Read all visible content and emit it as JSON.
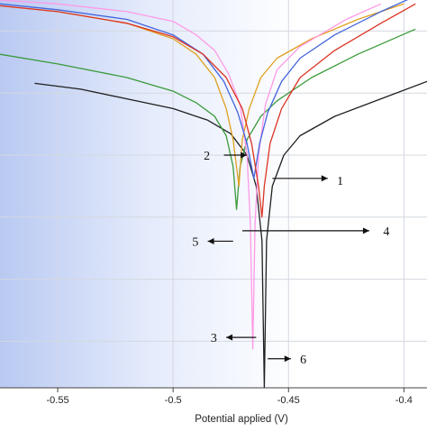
{
  "chart_data": {
    "type": "line",
    "xlabel": "Potential applied (V)",
    "ylabel": "",
    "title": "",
    "xlim": [
      -0.575,
      -0.39
    ],
    "ylim": [
      0,
      1
    ],
    "x_ticks": [
      -0.55,
      -0.5,
      -0.45,
      -0.4
    ],
    "x_tick_labels": [
      "-0.55",
      "-0.5",
      "-0.45",
      "-0.4"
    ],
    "y_tick_fractions": [
      0.12,
      0.28,
      0.44,
      0.6,
      0.76,
      0.92
    ],
    "grid": true,
    "background": "blue-gradient",
    "series": [
      {
        "color": "#1f1f1f",
        "points": [
          [
            -0.56,
            0.785
          ],
          [
            -0.54,
            0.77
          ],
          [
            -0.52,
            0.745
          ],
          [
            -0.5,
            0.72
          ],
          [
            -0.485,
            0.69
          ],
          [
            -0.475,
            0.655
          ],
          [
            -0.468,
            0.6
          ],
          [
            -0.464,
            0.52
          ],
          [
            -0.4615,
            0.38
          ],
          [
            -0.4605,
            0.0
          ],
          [
            -0.4595,
            0.38
          ],
          [
            -0.457,
            0.52
          ],
          [
            -0.452,
            0.6
          ],
          [
            -0.445,
            0.65
          ],
          [
            -0.43,
            0.7
          ],
          [
            -0.41,
            0.745
          ],
          [
            -0.39,
            0.79
          ]
        ]
      },
      {
        "color": "#3a9a3a",
        "points": [
          [
            -0.575,
            0.86
          ],
          [
            -0.55,
            0.835
          ],
          [
            -0.52,
            0.8
          ],
          [
            -0.5,
            0.765
          ],
          [
            -0.49,
            0.735
          ],
          [
            -0.482,
            0.7
          ],
          [
            -0.477,
            0.65
          ],
          [
            -0.474,
            0.57
          ],
          [
            -0.4725,
            0.46
          ],
          [
            -0.471,
            0.57
          ],
          [
            -0.468,
            0.64
          ],
          [
            -0.462,
            0.7
          ],
          [
            -0.455,
            0.74
          ],
          [
            -0.44,
            0.8
          ],
          [
            -0.42,
            0.86
          ],
          [
            -0.395,
            0.925
          ]
        ]
      },
      {
        "color": "#e0a020",
        "points": [
          [
            -0.575,
            0.985
          ],
          [
            -0.55,
            0.97
          ],
          [
            -0.52,
            0.94
          ],
          [
            -0.5,
            0.9
          ],
          [
            -0.49,
            0.86
          ],
          [
            -0.482,
            0.8
          ],
          [
            -0.477,
            0.72
          ],
          [
            -0.474,
            0.64
          ],
          [
            -0.4715,
            0.52
          ],
          [
            -0.47,
            0.64
          ],
          [
            -0.467,
            0.72
          ],
          [
            -0.462,
            0.8
          ],
          [
            -0.455,
            0.85
          ],
          [
            -0.44,
            0.9
          ],
          [
            -0.42,
            0.95
          ],
          [
            -0.4,
            0.99
          ]
        ]
      },
      {
        "color": "#ff99e6",
        "points": [
          [
            -0.575,
            1.0
          ],
          [
            -0.55,
            0.99
          ],
          [
            -0.52,
            0.97
          ],
          [
            -0.5,
            0.945
          ],
          [
            -0.49,
            0.91
          ],
          [
            -0.482,
            0.87
          ],
          [
            -0.476,
            0.81
          ],
          [
            -0.471,
            0.73
          ],
          [
            -0.468,
            0.6
          ],
          [
            -0.4665,
            0.42
          ],
          [
            -0.4655,
            0.1
          ],
          [
            -0.4645,
            0.42
          ],
          [
            -0.463,
            0.6
          ],
          [
            -0.46,
            0.73
          ],
          [
            -0.455,
            0.82
          ],
          [
            -0.445,
            0.88
          ],
          [
            -0.425,
            0.95
          ],
          [
            -0.41,
            0.99
          ]
        ]
      },
      {
        "color": "#4466dd",
        "points": [
          [
            -0.575,
            0.99
          ],
          [
            -0.55,
            0.975
          ],
          [
            -0.52,
            0.95
          ],
          [
            -0.5,
            0.91
          ],
          [
            -0.487,
            0.86
          ],
          [
            -0.478,
            0.79
          ],
          [
            -0.472,
            0.71
          ],
          [
            -0.468,
            0.63
          ],
          [
            -0.465,
            0.54
          ],
          [
            -0.4625,
            0.63
          ],
          [
            -0.459,
            0.71
          ],
          [
            -0.453,
            0.79
          ],
          [
            -0.445,
            0.85
          ],
          [
            -0.43,
            0.91
          ],
          [
            -0.41,
            0.97
          ],
          [
            -0.395,
            1.01
          ]
        ]
      },
      {
        "color": "#dd3322",
        "points": [
          [
            -0.575,
            0.985
          ],
          [
            -0.55,
            0.97
          ],
          [
            -0.52,
            0.94
          ],
          [
            -0.5,
            0.905
          ],
          [
            -0.487,
            0.86
          ],
          [
            -0.477,
            0.8
          ],
          [
            -0.47,
            0.72
          ],
          [
            -0.466,
            0.63
          ],
          [
            -0.463,
            0.52
          ],
          [
            -0.4615,
            0.44
          ],
          [
            -0.4605,
            0.52
          ],
          [
            -0.458,
            0.63
          ],
          [
            -0.453,
            0.72
          ],
          [
            -0.445,
            0.8
          ],
          [
            -0.43,
            0.87
          ],
          [
            -0.41,
            0.94
          ],
          [
            -0.395,
            0.99
          ]
        ]
      }
    ],
    "annotations": [
      {
        "label": "1",
        "arrow_from": [
          -0.457,
          0.54
        ],
        "arrow_to": [
          -0.433,
          0.54
        ],
        "text_at": [
          -0.429,
          0.535
        ],
        "text_anchor": "start"
      },
      {
        "label": "2",
        "arrow_from": [
          -0.478,
          0.6
        ],
        "arrow_to": [
          -0.468,
          0.6
        ],
        "text_at": [
          -0.484,
          0.6
        ],
        "text_anchor": "end"
      },
      {
        "label": "3",
        "arrow_from": [
          -0.464,
          0.13
        ],
        "arrow_to": [
          -0.477,
          0.13
        ],
        "text_at": [
          -0.481,
          0.13
        ],
        "text_anchor": "end"
      },
      {
        "label": "4",
        "arrow_from": [
          -0.47,
          0.405
        ],
        "arrow_to": [
          -0.415,
          0.405
        ],
        "text_at": [
          -0.409,
          0.405
        ],
        "text_anchor": "start"
      },
      {
        "label": "5",
        "arrow_from": [
          -0.474,
          0.378
        ],
        "arrow_to": [
          -0.485,
          0.378
        ],
        "text_at": [
          -0.489,
          0.378
        ],
        "text_anchor": "end"
      },
      {
        "label": "6",
        "arrow_from": [
          -0.459,
          0.075
        ],
        "arrow_to": [
          -0.449,
          0.075
        ],
        "text_at": [
          -0.445,
          0.075
        ],
        "text_anchor": "start"
      }
    ]
  }
}
